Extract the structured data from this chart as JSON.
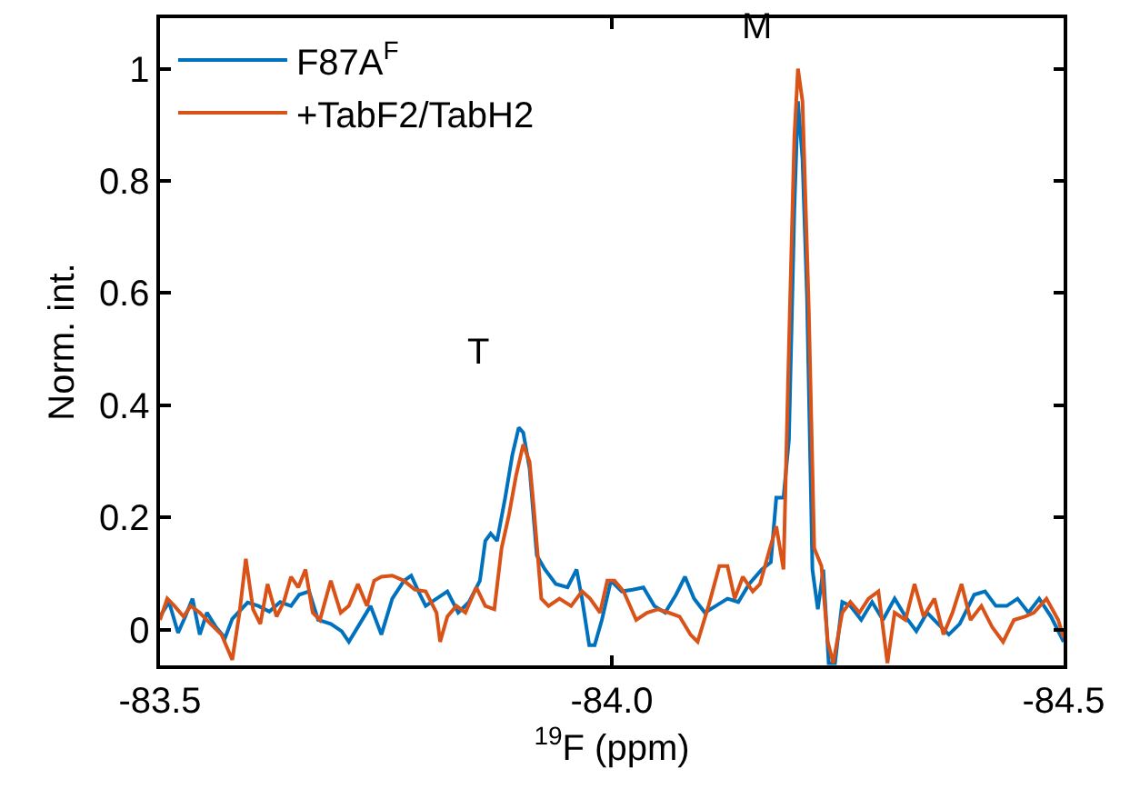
{
  "chart_data": {
    "type": "line",
    "xlabel": "$^{19}$F (ppm)",
    "ylabel": "Norm. int.",
    "xlim": [
      -83.5,
      -84.5
    ],
    "xticks": [
      {
        "value": -83.5,
        "label": "-83.5"
      },
      {
        "value": -84.0,
        "label": "-84.0"
      },
      {
        "value": -84.5,
        "label": "-84.5"
      }
    ],
    "ylim": [
      -0.064,
      1.09
    ],
    "yticks": [
      0,
      0.2,
      0.4,
      0.6,
      0.8,
      1
    ],
    "legend": "top left",
    "marker": "none",
    "line_style": "solid",
    "annotations": [
      "T",
      "M"
    ],
    "series": [
      {
        "name": "F87A$^{F}$",
        "color": "#0072bd",
        "x": [
          -83.5,
          -83.51,
          -83.52,
          -83.528,
          -83.536,
          -83.544,
          -83.552,
          -83.562,
          -83.572,
          -83.58,
          -83.597,
          -83.609,
          -83.621,
          -83.633,
          -83.645,
          -83.654,
          -83.665,
          -83.675,
          -83.689,
          -83.701,
          -83.709,
          -83.721,
          -83.733,
          -83.745,
          -83.757,
          -83.77,
          -83.778,
          -83.786,
          -83.794,
          -83.806,
          -83.818,
          -83.83,
          -83.842,
          -83.854,
          -83.86,
          -83.866,
          -83.873,
          -83.882,
          -83.89,
          -83.897,
          -83.902,
          -83.909,
          -83.917,
          -83.926,
          -83.938,
          -83.951,
          -83.961,
          -83.967,
          -83.975,
          -83.981,
          -83.989,
          -83.999,
          -84.011,
          -84.023,
          -84.035,
          -84.047,
          -84.059,
          -84.071,
          -84.081,
          -84.091,
          -84.103,
          -84.115,
          -84.128,
          -84.14,
          -84.152,
          -84.166,
          -84.176,
          -84.182,
          -84.19,
          -84.196,
          -84.202,
          -84.206,
          -84.211,
          -84.216,
          -84.222,
          -84.228,
          -84.234,
          -84.24,
          -84.247,
          -84.255,
          -84.264,
          -84.276,
          -84.288,
          -84.3,
          -84.313,
          -84.325,
          -84.337,
          -84.349,
          -84.361,
          -84.373,
          -84.385,
          -84.401,
          -84.413,
          -84.425,
          -84.437,
          -84.449,
          -84.461,
          -84.473,
          -84.486,
          -84.5
        ],
        "values": [
          0.023,
          0.049,
          -0.006,
          0.023,
          0.055,
          -0.009,
          0.03,
          0.004,
          -0.015,
          0.019,
          0.048,
          0.042,
          0.032,
          0.049,
          0.042,
          0.062,
          0.068,
          0.017,
          0.01,
          -0.003,
          -0.022,
          0.01,
          0.042,
          -0.009,
          0.055,
          0.087,
          0.096,
          0.068,
          0.042,
          0.055,
          0.068,
          0.03,
          0.049,
          0.087,
          0.158,
          0.171,
          0.158,
          0.235,
          0.312,
          0.36,
          0.351,
          0.287,
          0.132,
          0.107,
          0.081,
          0.075,
          0.107,
          0.055,
          -0.028,
          -0.028,
          0.017,
          0.087,
          0.068,
          0.071,
          0.075,
          0.042,
          0.03,
          0.062,
          0.094,
          0.055,
          0.03,
          0.042,
          0.055,
          0.049,
          0.081,
          0.107,
          0.12,
          0.235,
          0.235,
          0.338,
          0.749,
          0.942,
          0.839,
          0.595,
          0.107,
          0.036,
          0.107,
          -0.06,
          -0.06,
          0.049,
          0.042,
          0.017,
          0.049,
          0.017,
          0.055,
          0.023,
          -0.003,
          0.03,
          0.01,
          -0.009,
          0.01,
          0.062,
          0.068,
          0.042,
          0.042,
          0.055,
          0.03,
          0.055,
          0.023,
          -0.022
        ]
      },
      {
        "name": "+TabF2/TabH2",
        "color": "#d95319",
        "x": [
          -83.5,
          -83.508,
          -83.516,
          -83.526,
          -83.534,
          -83.544,
          -83.556,
          -83.568,
          -83.58,
          -83.588,
          -83.595,
          -83.603,
          -83.611,
          -83.619,
          -83.629,
          -83.637,
          -83.645,
          -83.653,
          -83.661,
          -83.669,
          -83.677,
          -83.689,
          -83.7,
          -83.709,
          -83.719,
          -83.729,
          -83.737,
          -83.745,
          -83.757,
          -83.77,
          -83.782,
          -83.794,
          -83.806,
          -83.81,
          -83.818,
          -83.828,
          -83.838,
          -83.85,
          -83.86,
          -83.87,
          -83.878,
          -83.886,
          -83.894,
          -83.902,
          -83.909,
          -83.914,
          -83.922,
          -83.93,
          -83.942,
          -83.955,
          -83.967,
          -83.976,
          -83.987,
          -83.995,
          -84.003,
          -84.013,
          -84.027,
          -84.039,
          -84.051,
          -84.063,
          -84.075,
          -84.087,
          -84.095,
          -84.107,
          -84.119,
          -84.128,
          -84.136,
          -84.145,
          -84.156,
          -84.164,
          -84.174,
          -84.182,
          -84.19,
          -84.196,
          -84.202,
          -84.206,
          -84.211,
          -84.218,
          -84.224,
          -84.232,
          -84.239,
          -84.245,
          -84.255,
          -84.264,
          -84.274,
          -84.284,
          -84.295,
          -84.305,
          -84.313,
          -84.325,
          -84.335,
          -84.345,
          -84.357,
          -84.367,
          -84.377,
          -84.387,
          -84.397,
          -84.409,
          -84.421,
          -84.433,
          -84.445,
          -84.457,
          -84.467,
          -84.481,
          -84.494,
          -84.5
        ],
        "values": [
          0.017,
          0.055,
          0.042,
          0.023,
          0.042,
          0.03,
          0.01,
          -0.009,
          -0.054,
          0.03,
          0.126,
          0.036,
          0.01,
          0.081,
          0.023,
          0.049,
          0.094,
          0.075,
          0.107,
          0.03,
          0.017,
          0.087,
          0.03,
          0.042,
          0.081,
          0.042,
          0.087,
          0.094,
          0.096,
          0.087,
          0.071,
          0.068,
          0.03,
          -0.022,
          0.023,
          0.042,
          0.03,
          0.075,
          0.042,
          0.036,
          0.145,
          0.203,
          0.274,
          0.33,
          0.299,
          0.21,
          0.055,
          0.042,
          0.055,
          0.042,
          0.068,
          0.055,
          0.03,
          0.087,
          0.087,
          0.068,
          0.017,
          0.03,
          0.036,
          0.03,
          0.023,
          -0.009,
          -0.022,
          0.042,
          0.113,
          0.113,
          0.055,
          0.094,
          0.068,
          0.081,
          0.139,
          0.184,
          0.107,
          0.505,
          0.878,
          1.0,
          0.942,
          0.569,
          0.145,
          0.113,
          -0.022,
          -0.06,
          0.03,
          0.049,
          0.03,
          0.055,
          0.068,
          -0.06,
          0.03,
          0.017,
          0.081,
          0.023,
          0.055,
          -0.009,
          0.03,
          0.081,
          0.017,
          0.042,
          0.004,
          -0.022,
          0.017,
          0.023,
          0.03,
          0.055,
          0.017,
          -0.015
        ]
      }
    ]
  }
}
